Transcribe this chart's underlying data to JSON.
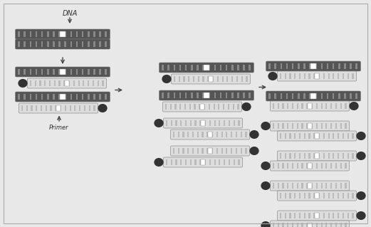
{
  "bg_color": "#e8e8e8",
  "dark_strand": "#555555",
  "light_strand": "#cccccc",
  "lighter_strand": "#dddddd",
  "stripe_dark": "#888888",
  "stripe_light": "#bbbbbb",
  "primer_color": "#333333",
  "white": "#ffffff",
  "arrow_color": "#444444",
  "border_color": "#aaaaaa",
  "text_color": "#333333"
}
